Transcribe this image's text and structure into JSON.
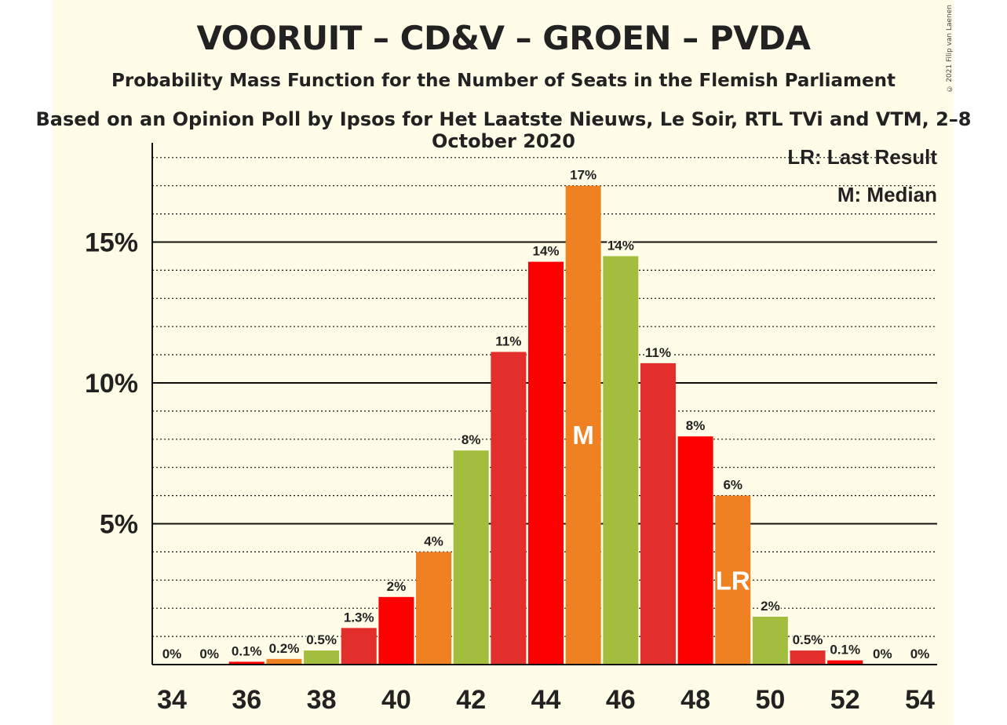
{
  "title": "VOORUIT – CD&V – GROEN – PVDA",
  "subtitle": "Probability Mass Function for the Number of Seats in the Flemish Parliament",
  "source": "Based on an Opinion Poll by Ipsos for Het Laatste Nieuws, Le Soir, RTL TVi and VTM, 2–8 October 2020",
  "copyright": "© 2021 Filip van Laenen",
  "legend": {
    "last_result": "LR: Last Result",
    "median": "M: Median"
  },
  "colors": {
    "red": "#e32f2b",
    "bright_red": "#ff0000",
    "orange": "#f08122",
    "green": "#a3be3e",
    "background": "#fffde8"
  },
  "chart_data": {
    "type": "bar",
    "x": [
      34,
      35,
      36,
      37,
      38,
      39,
      40,
      41,
      42,
      43,
      44,
      45,
      46,
      47,
      48,
      49,
      50,
      51,
      52,
      53,
      54
    ],
    "values": [
      0,
      0,
      0.1,
      0.2,
      0.5,
      1.3,
      2.4,
      4.0,
      7.6,
      11.1,
      14.3,
      17.0,
      14.5,
      10.7,
      8.1,
      6.0,
      1.7,
      0.5,
      0.15,
      0,
      0
    ],
    "labels": [
      "0%",
      "0%",
      "0.1%",
      "0.2%",
      "0.5%",
      "1.3%",
      "2%",
      "4%",
      "8%",
      "11%",
      "14%",
      "17%",
      "14%",
      "11%",
      "8%",
      "6%",
      "2%",
      "0.5%",
      "0.1%",
      "0%",
      "0%"
    ],
    "bar_colors": [
      "#e32f2b",
      "#ff0000",
      "#ff0000",
      "#f08122",
      "#a3be3e",
      "#e32f2b",
      "#ff0000",
      "#f08122",
      "#a3be3e",
      "#e32f2b",
      "#ff0000",
      "#f08122",
      "#a3be3e",
      "#e32f2b",
      "#ff0000",
      "#f08122",
      "#a3be3e",
      "#e32f2b",
      "#ff0000",
      "#f08122",
      "#a3be3e"
    ],
    "x_ticks": [
      34,
      36,
      38,
      40,
      42,
      44,
      46,
      48,
      50,
      52,
      54
    ],
    "y_ticks": [
      5,
      10,
      15
    ],
    "y_tick_labels": [
      "5%",
      "10%",
      "15%"
    ],
    "ylim": [
      0,
      18
    ],
    "median_seat": 45,
    "median_marker": "M",
    "last_result_seat": 49,
    "last_result_marker": "LR",
    "grid": "solid major at 5%, dotted minor at 1%",
    "legend_position": "top-right"
  }
}
